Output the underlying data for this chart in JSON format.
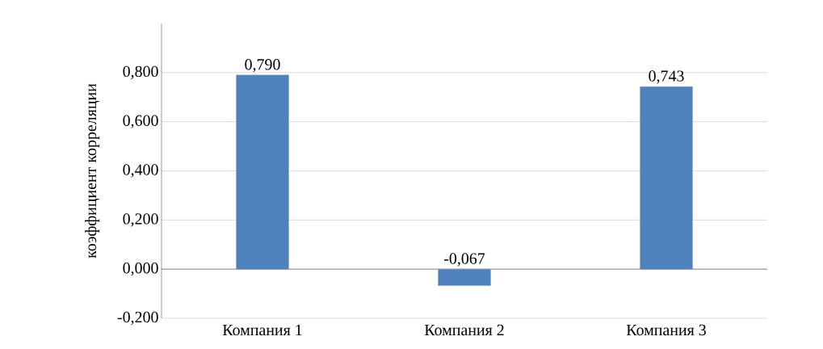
{
  "chart_data": {
    "type": "bar",
    "ylabel": "коэффициент корреляции",
    "categories": [
      "Компания 1",
      "Компания 2",
      "Компания 3"
    ],
    "values": [
      0.79,
      -0.067,
      0.743
    ],
    "value_labels": [
      "0,790",
      "-0,067",
      "0,743"
    ],
    "color": "#4f81bd",
    "ylim": [
      -0.2,
      1.0
    ],
    "yticks": [
      {
        "value": -0.2,
        "label": "-0,200"
      },
      {
        "value": 0.0,
        "label": "0,000"
      },
      {
        "value": 0.2,
        "label": "0,200"
      },
      {
        "value": 0.4,
        "label": "0,400"
      },
      {
        "value": 0.6,
        "label": "0,600"
      },
      {
        "value": 0.8,
        "label": "0,800"
      }
    ],
    "grid": "y"
  }
}
